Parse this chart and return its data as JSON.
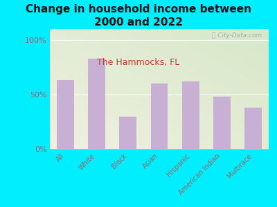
{
  "title": "Change in household income between\n2000 and 2022",
  "subtitle": "The Hammocks, FL",
  "categories": [
    "All",
    "White",
    "Black",
    "Asian",
    "Hispanic",
    "American Indian",
    "Multirace"
  ],
  "values": [
    63,
    83,
    30,
    60,
    62,
    48,
    38
  ],
  "bar_color": "#c8afd4",
  "title_fontsize": 11,
  "subtitle_fontsize": 9,
  "subtitle_color": "#c0392b",
  "title_color": "#111111",
  "background_outer": "#00eeff",
  "background_inner_topleft": "#d6e8c8",
  "background_inner_bottomright": "#f0f0e0",
  "tick_label_color": "#996666",
  "ylabel_values": [
    "0%",
    "50%",
    "100%"
  ],
  "yticks": [
    0,
    50,
    100
  ],
  "ylim": [
    0,
    110
  ],
  "watermark": "ⓘ City-Data.com"
}
